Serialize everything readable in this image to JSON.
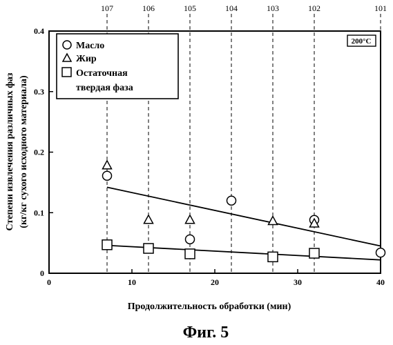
{
  "chart_data": {
    "type": "scatter",
    "x_range": [
      0,
      40
    ],
    "y_range": [
      0,
      0.4
    ],
    "x_ticks": [
      "0",
      "10",
      "20",
      "30",
      "40"
    ],
    "y_ticks": [
      "0",
      "0.1",
      "0.2",
      "0.3",
      "0.4"
    ],
    "xlabel": "Продолжительность обработки (мин)",
    "ylabel_line1": "Степени извлечения различных фаз",
    "ylabel_line2": "(кг/кг сухого исходного материала)",
    "caption": "Фиг. 5",
    "temperature_label": "200°C",
    "top_labels": [
      {
        "label": "107",
        "x": 7
      },
      {
        "label": "106",
        "x": 12
      },
      {
        "label": "105",
        "x": 17
      },
      {
        "label": "104",
        "x": 22
      },
      {
        "label": "103",
        "x": 27
      },
      {
        "label": "102",
        "x": 32
      },
      {
        "label": "101",
        "x": 40
      }
    ],
    "legend": [
      {
        "marker": "circle",
        "text": "Масло"
      },
      {
        "marker": "triangle",
        "text": "Жир"
      },
      {
        "marker": "square",
        "text": "Остаточная"
      },
      {
        "marker": "none",
        "text": "твердая фаза"
      }
    ],
    "series": [
      {
        "name": "Масло",
        "marker": "circle",
        "points": [
          [
            7,
            0.161
          ],
          [
            17,
            0.056
          ],
          [
            22,
            0.12
          ],
          [
            32,
            0.088
          ],
          [
            40,
            0.034
          ]
        ]
      },
      {
        "name": "Жир",
        "marker": "triangle",
        "points": [
          [
            7,
            0.178
          ],
          [
            12,
            0.088
          ],
          [
            17,
            0.088
          ],
          [
            27,
            0.086
          ],
          [
            32,
            0.082
          ]
        ]
      },
      {
        "name": "Остаточная твердая фаза",
        "marker": "square",
        "points": [
          [
            7,
            0.047
          ],
          [
            12,
            0.041
          ],
          [
            17,
            0.032
          ],
          [
            27,
            0.027
          ],
          [
            32,
            0.033
          ]
        ]
      }
    ],
    "trend_lines": [
      {
        "from": [
          7,
          0.142
        ],
        "to": [
          40,
          0.045
        ]
      },
      {
        "from": [
          7,
          0.046
        ],
        "to": [
          40,
          0.022
        ]
      }
    ]
  }
}
